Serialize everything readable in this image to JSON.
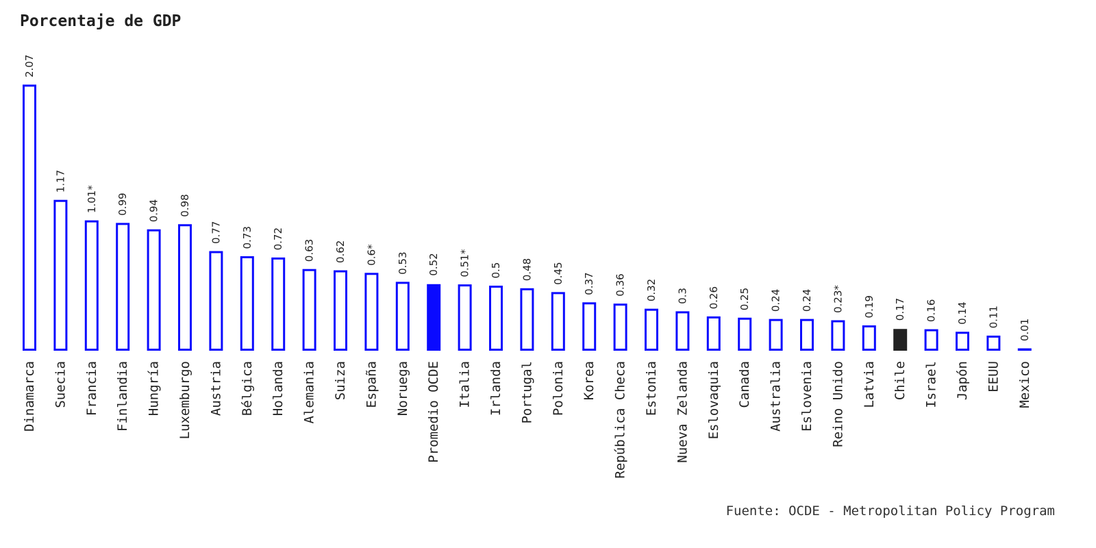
{
  "title": "Porcentaje de GDP",
  "source": "Fuente: OCDE - Metropolitan Policy Program",
  "colors": {
    "outline": "#0a0aff",
    "average_fill": "#0a0aff",
    "highlight_fill": "#222222"
  },
  "chart_data": {
    "type": "bar",
    "title": "Porcentaje de GDP",
    "xlabel": "",
    "ylabel": "",
    "ylim": [
      0,
      2.07
    ],
    "grid": false,
    "categories": [
      "Dinamarca",
      "Suecia",
      "Francia",
      "Finlandia",
      "Hungría",
      "Luxemburgo",
      "Austria",
      "Bélgica",
      "Holanda",
      "Alemania",
      "Suiza",
      "España",
      "Noruega",
      "Promedio OCDE",
      "Italia",
      "Irlanda",
      "Portugal",
      "Polonia",
      "Korea",
      "República Checa",
      "Estonia",
      "Nueva Zelanda",
      "Eslovaquia",
      "Canada",
      "Australia",
      "Eslovenia",
      "Reino Unido",
      "Latvia",
      "Chile",
      "Israel",
      "Japón",
      "EEUU",
      "Mexico"
    ],
    "values": [
      2.07,
      1.17,
      1.01,
      0.99,
      0.94,
      0.98,
      0.77,
      0.73,
      0.72,
      0.63,
      0.62,
      0.6,
      0.53,
      0.52,
      0.51,
      0.5,
      0.48,
      0.45,
      0.37,
      0.36,
      0.32,
      0.3,
      0.26,
      0.25,
      0.24,
      0.24,
      0.23,
      0.19,
      0.17,
      0.16,
      0.14,
      0.11,
      0.01
    ],
    "value_labels": [
      "2.07",
      "1.17",
      "1.01*",
      "0.99",
      "0.94",
      "0.98",
      "0.77",
      "0.73",
      "0.72",
      "0.63",
      "0.62",
      "0.6*",
      "0.53",
      "0.52",
      "0.51*",
      "0.5",
      "0.48",
      "0.45",
      "0.37",
      "0.36",
      "0.32",
      "0.3",
      "0.26",
      "0.25",
      "0.24",
      "0.24",
      "0.23*",
      "0.19",
      "0.17",
      "0.16",
      "0.14",
      "0.11",
      "0.01"
    ],
    "styles": [
      "outline",
      "outline",
      "outline",
      "outline",
      "outline",
      "outline",
      "outline",
      "outline",
      "outline",
      "outline",
      "outline",
      "outline",
      "outline",
      "average",
      "outline",
      "outline",
      "outline",
      "outline",
      "outline",
      "outline",
      "outline",
      "outline",
      "outline",
      "outline",
      "outline",
      "outline",
      "outline",
      "outline",
      "highlight",
      "outline",
      "outline",
      "outline",
      "outline"
    ]
  }
}
